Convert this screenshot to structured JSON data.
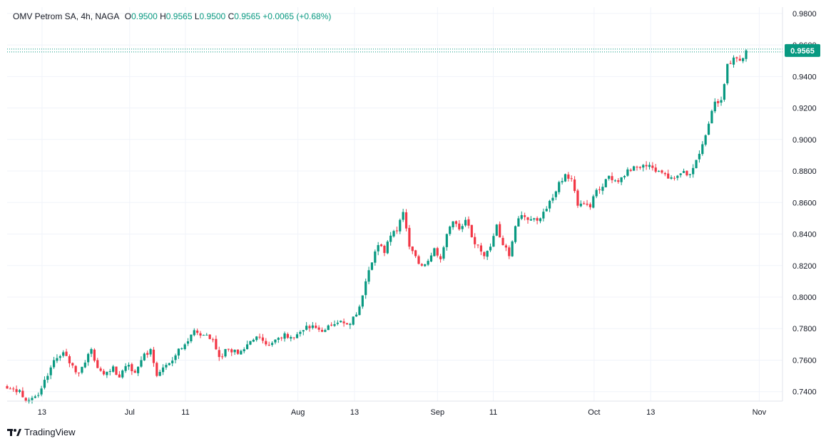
{
  "legend": {
    "symbol": "OMV Petrom SA, 4h, NAGA",
    "o_label": "O",
    "o_value": "0.9500",
    "h_label": "H",
    "h_value": "0.9565",
    "l_label": "L",
    "l_value": "0.9500",
    "c_label": "C",
    "c_value": "0.9565",
    "change": "+0.0065 (+0.68%)"
  },
  "footer": {
    "brand": "TradingView"
  },
  "colors": {
    "up": "#089981",
    "down": "#f23645",
    "grid": "#f0f3fa",
    "text": "#131722"
  },
  "chart_data": {
    "type": "candlestick",
    "title": "OMV Petrom SA, 4h, NAGA",
    "ylim": [
      0.734,
      0.984
    ],
    "y_ticks": [
      "0.7400",
      "0.7600",
      "0.7800",
      "0.8000",
      "0.8200",
      "0.8400",
      "0.8600",
      "0.8800",
      "0.9000",
      "0.9200",
      "0.9400",
      "0.9600",
      "0.9800"
    ],
    "x_ticks": [
      {
        "label": "13",
        "t": 0.045
      },
      {
        "label": "Jul",
        "t": 0.158
      },
      {
        "label": "11",
        "t": 0.23
      },
      {
        "label": "Aug",
        "t": 0.375
      },
      {
        "label": "13",
        "t": 0.448
      },
      {
        "label": "Sep",
        "t": 0.555
      },
      {
        "label": "11",
        "t": 0.627
      },
      {
        "label": "Oct",
        "t": 0.757
      },
      {
        "label": "13",
        "t": 0.83
      },
      {
        "label": "Nov",
        "t": 0.97
      }
    ],
    "last_price": "0.9565",
    "last_price_value": 0.9565,
    "anchors": [
      [
        0,
        0.742
      ],
      [
        4,
        0.741
      ],
      [
        6,
        0.734
      ],
      [
        9,
        0.737
      ],
      [
        11,
        0.742
      ],
      [
        13,
        0.75
      ],
      [
        15,
        0.76
      ],
      [
        18,
        0.765
      ],
      [
        20,
        0.758
      ],
      [
        23,
        0.752
      ],
      [
        27,
        0.767
      ],
      [
        29,
        0.755
      ],
      [
        31,
        0.751
      ],
      [
        34,
        0.756
      ],
      [
        36,
        0.749
      ],
      [
        39,
        0.757
      ],
      [
        41,
        0.752
      ],
      [
        43,
        0.76
      ],
      [
        46,
        0.767
      ],
      [
        48,
        0.75
      ],
      [
        51,
        0.757
      ],
      [
        54,
        0.763
      ],
      [
        57,
        0.77
      ],
      [
        60,
        0.779
      ],
      [
        63,
        0.776
      ],
      [
        66,
        0.773
      ],
      [
        68,
        0.762
      ],
      [
        71,
        0.767
      ],
      [
        74,
        0.764
      ],
      [
        77,
        0.77
      ],
      [
        80,
        0.775
      ],
      [
        83,
        0.77
      ],
      [
        86,
        0.773
      ],
      [
        89,
        0.777
      ],
      [
        92,
        0.774
      ],
      [
        95,
        0.779
      ],
      [
        98,
        0.782
      ],
      [
        101,
        0.778
      ],
      [
        104,
        0.782
      ],
      [
        107,
        0.785
      ],
      [
        110,
        0.783
      ],
      [
        113,
        0.794
      ],
      [
        115,
        0.81
      ],
      [
        117,
        0.822
      ],
      [
        119,
        0.833
      ],
      [
        121,
        0.828
      ],
      [
        123,
        0.839
      ],
      [
        125,
        0.842
      ],
      [
        127,
        0.854
      ],
      [
        129,
        0.832
      ],
      [
        131,
        0.826
      ],
      [
        133,
        0.82
      ],
      [
        135,
        0.823
      ],
      [
        137,
        0.831
      ],
      [
        139,
        0.824
      ],
      [
        141,
        0.84
      ],
      [
        143,
        0.848
      ],
      [
        145,
        0.843
      ],
      [
        147,
        0.849
      ],
      [
        149,
        0.838
      ],
      [
        151,
        0.833
      ],
      [
        153,
        0.826
      ],
      [
        155,
        0.832
      ],
      [
        157,
        0.846
      ],
      [
        159,
        0.833
      ],
      [
        161,
        0.826
      ],
      [
        163,
        0.845
      ],
      [
        165,
        0.852
      ],
      [
        167,
        0.849
      ],
      [
        169,
        0.85
      ],
      [
        171,
        0.85
      ],
      [
        173,
        0.856
      ],
      [
        175,
        0.863
      ],
      [
        177,
        0.873
      ],
      [
        179,
        0.878
      ],
      [
        181,
        0.875
      ],
      [
        183,
        0.858
      ],
      [
        185,
        0.859
      ],
      [
        187,
        0.857
      ],
      [
        189,
        0.868
      ],
      [
        191,
        0.87
      ],
      [
        193,
        0.877
      ],
      [
        195,
        0.874
      ],
      [
        197,
        0.876
      ],
      [
        199,
        0.881
      ],
      [
        201,
        0.883
      ],
      [
        203,
        0.882
      ],
      [
        205,
        0.883
      ],
      [
        207,
        0.882
      ],
      [
        209,
        0.88
      ],
      [
        211,
        0.878
      ],
      [
        213,
        0.876
      ],
      [
        215,
        0.877
      ],
      [
        217,
        0.88
      ],
      [
        219,
        0.878
      ],
      [
        221,
        0.887
      ],
      [
        223,
        0.897
      ],
      [
        225,
        0.91
      ],
      [
        227,
        0.924
      ],
      [
        229,
        0.925
      ],
      [
        231,
        0.948
      ],
      [
        233,
        0.952
      ],
      [
        235,
        0.95
      ],
      [
        237,
        0.9565
      ]
    ],
    "n_candles": 238
  }
}
